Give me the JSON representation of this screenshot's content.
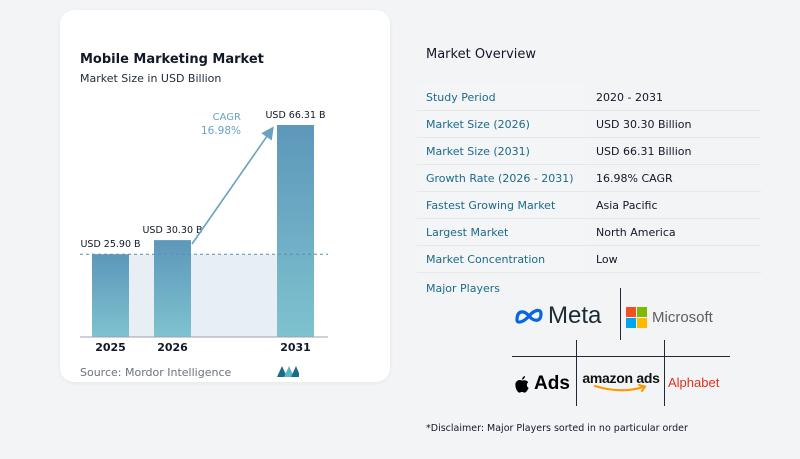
{
  "chart_data": {
    "type": "bar",
    "title": "Mobile Marketing Market",
    "subtitle": "Market Size in USD Billion",
    "categories": [
      "2025",
      "2026",
      "2031"
    ],
    "values": [
      25.9,
      30.3,
      66.31
    ],
    "data_labels": [
      "USD 25.90 B",
      "USD 30.30 B",
      "USD 66.31 B"
    ],
    "cagr_label": "CAGR",
    "cagr_value": "16.98%",
    "bar_color_top": "#5d97ba",
    "bar_color_bottom": "#7fc2cf",
    "baseline_reference": 25.9,
    "source": "Source:  Mordor Intelligence"
  },
  "overview": {
    "title": "Market Overview",
    "rows": [
      {
        "label": "Study Period",
        "value": "2020 - 2031"
      },
      {
        "label": "Market Size (2026)",
        "value": "USD 30.30 Billion"
      },
      {
        "label": "Market Size (2031)",
        "value": "USD 66.31 Billion"
      },
      {
        "label": "Growth Rate (2026 - 2031)",
        "value": "16.98% CAGR"
      },
      {
        "label": "Fastest Growing Market",
        "value": "Asia Pacific"
      },
      {
        "label": "Largest Market",
        "value": "North America"
      },
      {
        "label": "Market Concentration",
        "value": "Low"
      }
    ],
    "players_label": "Major Players",
    "players": {
      "meta": "Meta",
      "microsoft": "Microsoft",
      "apple": "Ads",
      "amazon": "amazon ads",
      "alphabet": "Alphabet"
    },
    "disclaimer": "*Disclaimer: Major Players sorted in no particular order"
  },
  "colors": {
    "accent": "#1c6a8a",
    "microsoft_red": "#f25022",
    "microsoft_green": "#7fba00",
    "microsoft_blue": "#00a4ef",
    "microsoft_yellow": "#ffb900",
    "meta_blue": "#0668e1",
    "alphabet_red": "#e0301e"
  }
}
